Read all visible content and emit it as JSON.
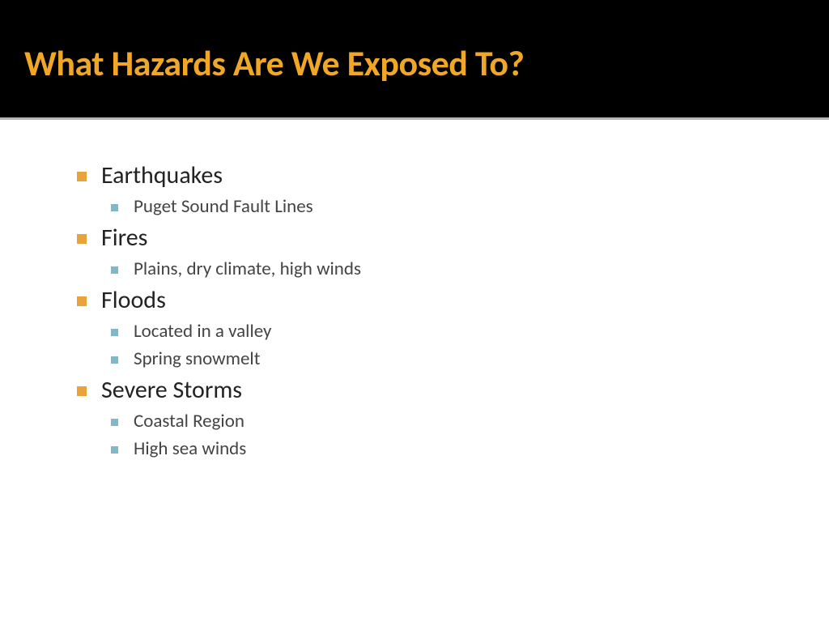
{
  "header": {
    "title": "What Hazards Are We Exposed To?"
  },
  "colors": {
    "header_bg": "#000000",
    "title_color": "#F0A727",
    "main_bullet_color": "#E8A33D",
    "sub_bullet_color": "#7FB8C9",
    "main_text_color": "#222222",
    "sub_text_color": "#444444",
    "background": "#ffffff"
  },
  "typography": {
    "title_fontsize": 44,
    "title_weight": "bold",
    "main_item_fontsize": 30,
    "sub_item_fontsize": 23,
    "font_family": "Segoe UI, Calibri, Arial, sans-serif"
  },
  "bullets": {
    "main_bullet_size": 12,
    "sub_bullet_size": 9,
    "main_bullet_shape": "square",
    "sub_bullet_shape": "square"
  },
  "hazards": [
    {
      "label": "Earthquakes",
      "details": [
        "Puget Sound Fault Lines"
      ]
    },
    {
      "label": "Fires",
      "details": [
        "Plains, dry climate, high winds"
      ]
    },
    {
      "label": "Floods",
      "details": [
        "Located in a valley",
        "Spring snowmelt"
      ]
    },
    {
      "label": "Severe Storms",
      "details": [
        "Coastal Region",
        "High sea winds"
      ]
    }
  ]
}
